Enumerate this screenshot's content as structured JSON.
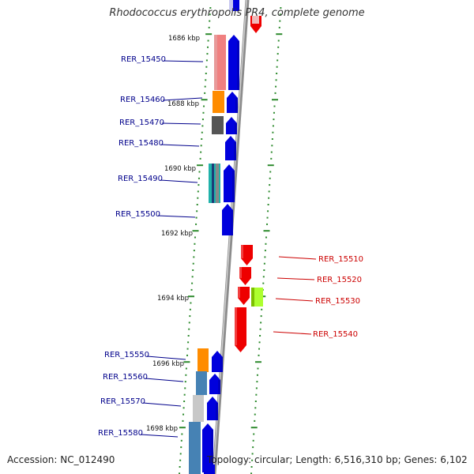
{
  "title": "Rhodococcus erythropolis PR4, complete genome",
  "footer": {
    "accession": "Accession: NC_012490",
    "summary": "Topology: circular; Length: 6,516,310 bp; Genes: 6,102"
  },
  "colors": {
    "forward": "#0000dd",
    "reverse": "#ee0000",
    "left_label": "#00008b",
    "right_label": "#cc0000",
    "backbone": "#8c8c8c",
    "tick": "#2e8b2e"
  },
  "scale_labels": [
    "1686 kbp",
    "1688 kbp",
    "1690 kbp",
    "1692 kbp",
    "1694 kbp",
    "1696 kbp",
    "1698 kbp"
  ],
  "genes_left": [
    {
      "label": "RER_15450"
    },
    {
      "label": "RER_15460"
    },
    {
      "label": "RER_15470"
    },
    {
      "label": "RER_15480"
    },
    {
      "label": "RER_15490"
    },
    {
      "label": "RER_15500"
    },
    {
      "label": "RER_15550"
    },
    {
      "label": "RER_15560"
    },
    {
      "label": "RER_15570"
    },
    {
      "label": "RER_15580"
    }
  ],
  "genes_right": [
    {
      "label": "RER_15510"
    },
    {
      "label": "RER_15520"
    },
    {
      "label": "RER_15530"
    },
    {
      "label": "RER_15540"
    }
  ]
}
